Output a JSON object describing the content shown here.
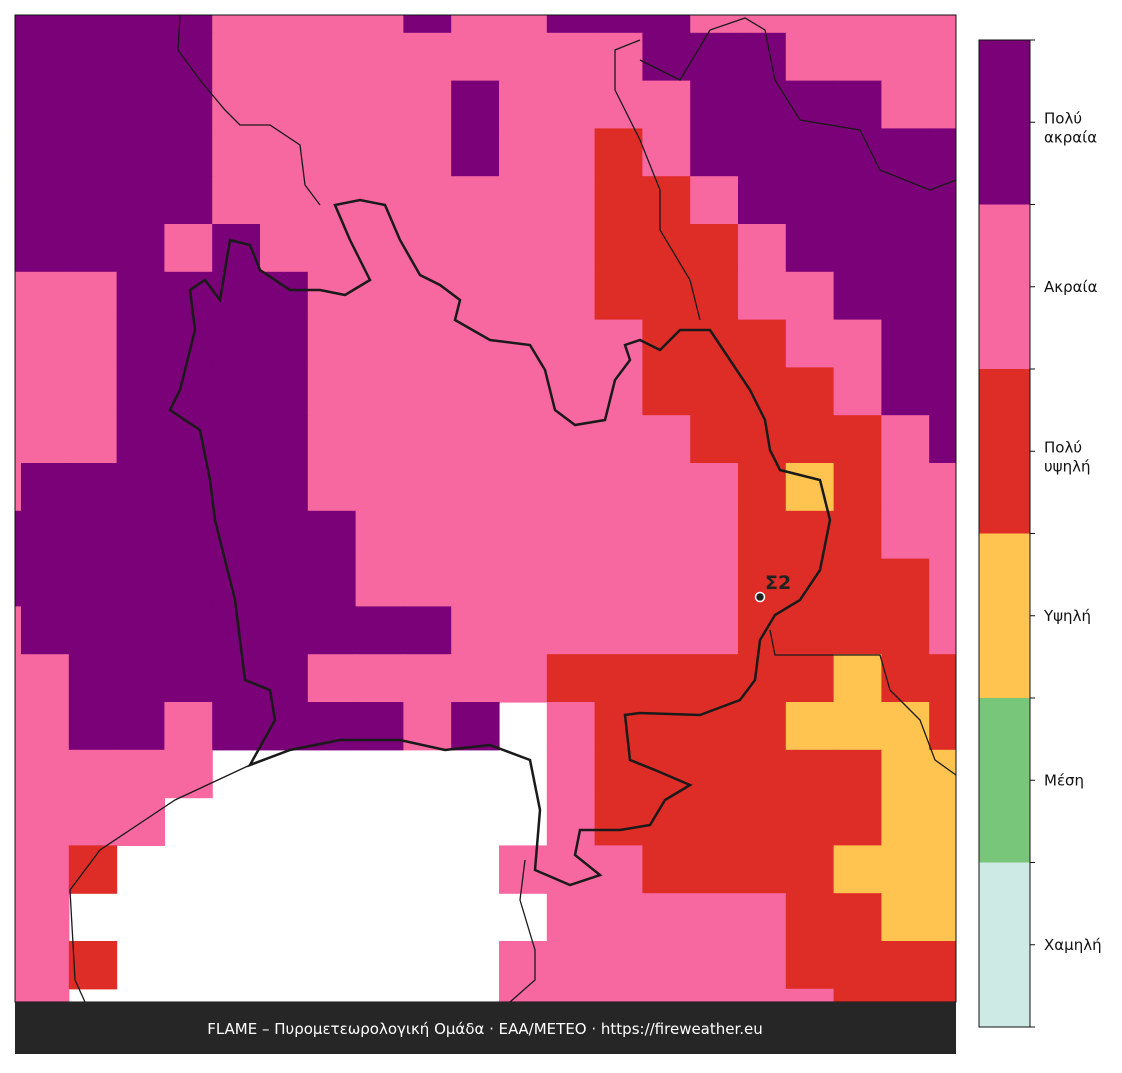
{
  "legend": {
    "levels": [
      {
        "label": "Χαμηλή",
        "color": "#cdebe4"
      },
      {
        "label": "Μέση",
        "color": "#78c679"
      },
      {
        "label": "Υψηλή",
        "color": "#fec44f"
      },
      {
        "label": "Πολύ υψηλή",
        "color": "#de2d26"
      },
      {
        "label": "Ακραία",
        "color": "#f768a1"
      },
      {
        "label": "Πολύ ακραία",
        "color": "#7a0177"
      }
    ]
  },
  "grid": {
    "rows": [
      [
        5,
        5,
        5,
        5,
        5,
        4,
        4,
        4,
        4,
        5,
        4,
        4,
        5,
        5,
        5,
        4,
        4,
        4,
        4,
        4,
        4
      ],
      [
        5,
        5,
        5,
        5,
        5,
        4,
        4,
        4,
        4,
        4,
        4,
        4,
        4,
        4,
        5,
        5,
        5,
        4,
        4,
        4,
        4
      ],
      [
        5,
        5,
        5,
        5,
        5,
        4,
        4,
        4,
        4,
        4,
        5,
        4,
        4,
        4,
        4,
        5,
        5,
        5,
        5,
        4,
        4
      ],
      [
        5,
        5,
        5,
        5,
        5,
        4,
        4,
        4,
        4,
        4,
        5,
        4,
        4,
        3,
        4,
        5,
        5,
        5,
        5,
        5,
        5
      ],
      [
        5,
        5,
        5,
        5,
        5,
        4,
        4,
        4,
        4,
        4,
        4,
        4,
        4,
        3,
        3,
        4,
        5,
        5,
        5,
        5,
        5
      ],
      [
        5,
        5,
        5,
        5,
        4,
        5,
        4,
        4,
        4,
        4,
        4,
        4,
        4,
        3,
        3,
        3,
        4,
        5,
        5,
        5,
        5
      ],
      [
        4,
        4,
        4,
        5,
        5,
        5,
        5,
        4,
        4,
        4,
        4,
        4,
        4,
        3,
        3,
        3,
        4,
        4,
        5,
        5,
        5
      ],
      [
        4,
        4,
        4,
        5,
        5,
        5,
        5,
        4,
        4,
        4,
        4,
        4,
        4,
        4,
        3,
        3,
        3,
        4,
        4,
        5,
        5
      ],
      [
        4,
        4,
        4,
        5,
        5,
        5,
        5,
        4,
        4,
        4,
        4,
        4,
        4,
        4,
        3,
        3,
        3,
        3,
        4,
        5,
        5
      ],
      [
        4,
        4,
        4,
        5,
        5,
        5,
        5,
        4,
        4,
        4,
        4,
        4,
        4,
        4,
        4,
        3,
        3,
        3,
        3,
        4,
        5
      ],
      [
        4,
        5,
        5,
        5,
        5,
        5,
        5,
        4,
        4,
        4,
        4,
        4,
        4,
        4,
        4,
        4,
        3,
        2,
        3,
        4,
        4
      ],
      [
        5,
        5,
        5,
        5,
        5,
        5,
        5,
        5,
        4,
        4,
        4,
        4,
        4,
        4,
        4,
        4,
        3,
        3,
        3,
        4,
        4
      ],
      [
        5,
        5,
        5,
        5,
        5,
        5,
        5,
        5,
        4,
        4,
        4,
        4,
        4,
        4,
        4,
        4,
        3,
        3,
        3,
        3,
        4
      ],
      [
        4,
        5,
        5,
        5,
        5,
        5,
        5,
        5,
        5,
        5,
        4,
        4,
        4,
        4,
        4,
        4,
        3,
        3,
        3,
        3,
        4
      ],
      [
        4,
        4,
        5,
        5,
        5,
        5,
        5,
        4,
        4,
        4,
        4,
        4,
        3,
        3,
        3,
        3,
        3,
        3,
        2,
        3,
        3
      ],
      [
        4,
        4,
        5,
        5,
        4,
        5,
        5,
        5,
        5,
        4,
        5,
        null,
        4,
        3,
        3,
        3,
        3,
        2,
        2,
        2,
        3
      ],
      [
        4,
        4,
        4,
        4,
        4,
        null,
        null,
        null,
        null,
        null,
        null,
        null,
        4,
        3,
        3,
        3,
        3,
        3,
        3,
        2,
        2
      ],
      [
        4,
        4,
        4,
        4,
        null,
        null,
        null,
        null,
        null,
        null,
        null,
        null,
        4,
        3,
        3,
        3,
        3,
        3,
        3,
        2,
        2
      ],
      [
        4,
        4,
        3,
        null,
        null,
        null,
        null,
        null,
        null,
        null,
        null,
        4,
        4,
        4,
        3,
        3,
        3,
        3,
        2,
        2,
        2
      ],
      [
        4,
        4,
        null,
        null,
        null,
        null,
        null,
        null,
        null,
        null,
        null,
        null,
        4,
        4,
        4,
        4,
        4,
        3,
        3,
        2,
        2
      ],
      [
        4,
        4,
        3,
        null,
        null,
        null,
        null,
        null,
        null,
        null,
        null,
        4,
        4,
        4,
        4,
        4,
        4,
        3,
        3,
        3,
        3
      ],
      [
        4,
        4,
        null,
        null,
        null,
        null,
        null,
        null,
        null,
        null,
        null,
        4,
        4,
        4,
        4,
        4,
        4,
        4,
        3,
        3,
        3
      ]
    ]
  },
  "points": [
    {
      "label": "Σ2"
    }
  ],
  "footer": "FLAME – Πυρομετεωρολογική Ομάδα · ΕΑΑ/METEO · https://fireweather.eu"
}
